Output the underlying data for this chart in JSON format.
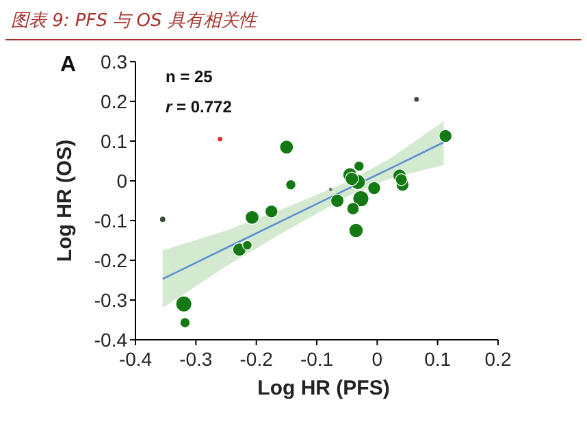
{
  "chart_data": {
    "type": "bubble",
    "title": "图表 9: PFS 与 OS 具有相关性",
    "xlabel": "Log HR (PFS)",
    "ylabel": "Log HR (OS)",
    "annotations": [
      "A",
      "n = 25",
      "*r* = 0.772"
    ],
    "xlim": [
      -0.4,
      0.2
    ],
    "xticks": [
      -0.4,
      -0.3,
      -0.2,
      -0.1,
      0,
      0.1,
      0.2
    ],
    "ylim": [
      -0.4,
      0.3
    ],
    "yticks": [
      -0.4,
      -0.3,
      -0.2,
      -0.1,
      0,
      0.1,
      0.2,
      0.3
    ],
    "grid": false,
    "series": [
      {
        "type": "bubble",
        "x": [
          -0.355,
          -0.32,
          -0.318,
          -0.26,
          -0.228,
          -0.215,
          -0.207,
          -0.175,
          -0.15,
          -0.143,
          -0.077,
          -0.066,
          -0.045,
          -0.042,
          -0.032,
          -0.04,
          -0.035,
          -0.03,
          -0.027,
          -0.005,
          0.037,
          0.04,
          0.042,
          0.065,
          0.113
        ],
        "values": [
          -0.097,
          -0.31,
          -0.357,
          0.105,
          -0.173,
          -0.162,
          -0.092,
          -0.077,
          0.085,
          -0.01,
          -0.022,
          -0.05,
          0.015,
          0.005,
          -0.003,
          -0.07,
          -0.125,
          0.037,
          -0.045,
          -0.018,
          0.013,
          0.003,
          -0.01,
          0.205,
          0.113
        ],
        "sizes": [
          0.15,
          1,
          0.4,
          0.12,
          0.7,
          0.35,
          0.75,
          0.65,
          0.75,
          0.4,
          0.08,
          0.7,
          0.8,
          0.7,
          0.9,
          0.6,
          0.8,
          0.4,
          1,
          0.65,
          0.7,
          0.55,
          0.65,
          0.12,
          0.65
        ],
        "colors": [
          "#3c4a3c",
          "#137a13",
          "#137a13",
          "#e03030",
          "#137a13",
          "#137a13",
          "#137a13",
          "#137a13",
          "#137a13",
          "#137a13",
          "#6a8a6a",
          "#137a13",
          "#137a13",
          "#137a13",
          "#137a13",
          "#137a13",
          "#137a13",
          "#137a13",
          "#137a13",
          "#137a13",
          "#137a13",
          "#137a13",
          "#137a13",
          "#3c4a3c",
          "#137a13"
        ]
      },
      {
        "type": "line",
        "color": "#5b8fd4",
        "x": [
          -0.355,
          -0.25,
          -0.15,
          -0.05,
          0.02,
          0.11
        ],
        "values": [
          -0.247,
          -0.169,
          -0.095,
          -0.021,
          0.03,
          0.097
        ],
        "lower": [
          -0.32,
          -0.215,
          -0.125,
          -0.04,
          0.005,
          0.04
        ],
        "upper": [
          -0.175,
          -0.125,
          -0.067,
          -0.003,
          0.055,
          0.15
        ]
      }
    ]
  }
}
